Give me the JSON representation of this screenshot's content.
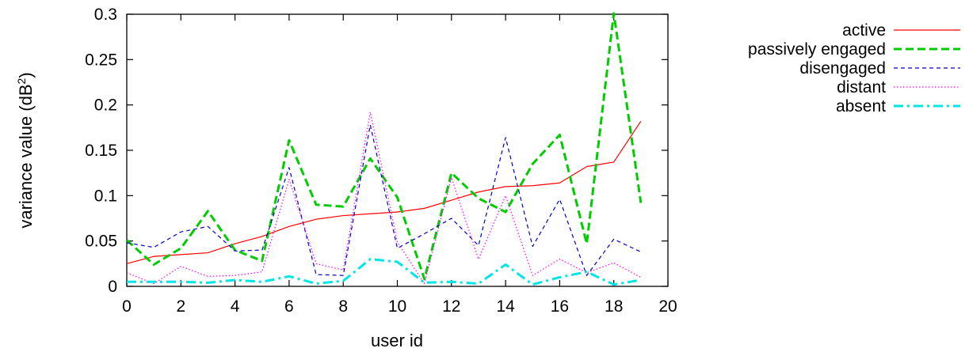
{
  "chart_data": {
    "type": "line",
    "xlabel": "user id",
    "ylabel": "variance value (dB",
    "ylabel_sup": "2",
    "ylabel_close": ")",
    "xlim": [
      0,
      20
    ],
    "ylim": [
      0,
      0.3
    ],
    "x_ticks": [
      0,
      2,
      4,
      6,
      8,
      10,
      12,
      14,
      16,
      18,
      20
    ],
    "x_tick_labels": [
      "0",
      "2",
      "4",
      "6",
      "8",
      "10",
      "12",
      "14",
      "16",
      "18",
      "20"
    ],
    "y_ticks": [
      0,
      0.05,
      0.1,
      0.15,
      0.2,
      0.25,
      0.3
    ],
    "y_tick_labels": [
      "0",
      "0.05",
      "0.1",
      "0.15",
      "0.2",
      "0.25",
      "0.3"
    ],
    "grid": false,
    "legend_position": "outside-right-top",
    "x": [
      0,
      1,
      2,
      3,
      4,
      5,
      6,
      7,
      8,
      9,
      10,
      11,
      12,
      13,
      14,
      15,
      16,
      17,
      18,
      19
    ],
    "series": [
      {
        "name": "active",
        "color": "#ff0000",
        "style": "solid",
        "values": [
          0.025,
          0.033,
          0.035,
          0.037,
          0.047,
          0.055,
          0.066,
          0.074,
          0.078,
          0.08,
          0.082,
          0.086,
          0.095,
          0.104,
          0.11,
          0.111,
          0.114,
          0.132,
          0.137,
          0.182
        ]
      },
      {
        "name": "passively engaged",
        "color": "#00cc00",
        "style": "dashed",
        "values": [
          0.051,
          0.024,
          0.042,
          0.083,
          0.04,
          0.028,
          0.161,
          0.09,
          0.088,
          0.141,
          0.098,
          0.008,
          0.125,
          0.097,
          0.082,
          0.135,
          0.167,
          0.047,
          0.301,
          0.092
        ]
      },
      {
        "name": "disengaged",
        "color": "#0000cc",
        "style": "fine-dashed",
        "values": [
          0.048,
          0.043,
          0.06,
          0.066,
          0.039,
          0.04,
          0.131,
          0.013,
          0.012,
          0.178,
          0.042,
          0.058,
          0.075,
          0.045,
          0.164,
          0.044,
          0.096,
          0.012,
          0.052,
          0.038
        ]
      },
      {
        "name": "distant",
        "color": "#ff00ff",
        "style": "dotted",
        "values": [
          0.015,
          0.003,
          0.022,
          0.011,
          0.012,
          0.016,
          0.118,
          0.025,
          0.018,
          0.192,
          0.049,
          0.003,
          0.12,
          0.03,
          0.1,
          0.012,
          0.03,
          0.015,
          0.026,
          0.01
        ]
      },
      {
        "name": "absent",
        "color": "#00e5e5",
        "style": "dash-dot",
        "values": [
          0.005,
          0.005,
          0.005,
          0.004,
          0.007,
          0.005,
          0.011,
          0.003,
          0.006,
          0.03,
          0.027,
          0.004,
          0.005,
          0.003,
          0.024,
          0.002,
          0.01,
          0.016,
          0.002,
          0.007
        ]
      }
    ]
  }
}
